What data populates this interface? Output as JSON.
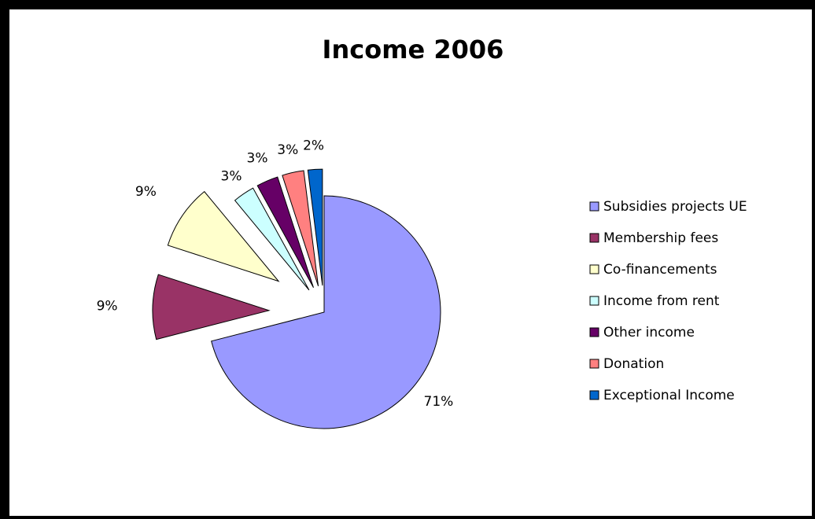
{
  "chart_data": {
    "type": "pie",
    "title": "Income 2006",
    "legend_position": "right",
    "categories": [
      "Subsidies projects UE",
      "Membership fees",
      "Co-financements",
      "Income from rent",
      "Other income",
      "Donation",
      "Exceptional Income"
    ],
    "values": [
      71,
      9,
      9,
      3,
      3,
      3,
      2
    ],
    "labels": [
      "71%",
      "9%",
      "9%",
      "3%",
      "3%",
      "3%",
      "2%"
    ],
    "colors": [
      "#9999ff",
      "#993366",
      "#ffffcc",
      "#ccffff",
      "#660066",
      "#ff8080",
      "#0066cc"
    ]
  }
}
